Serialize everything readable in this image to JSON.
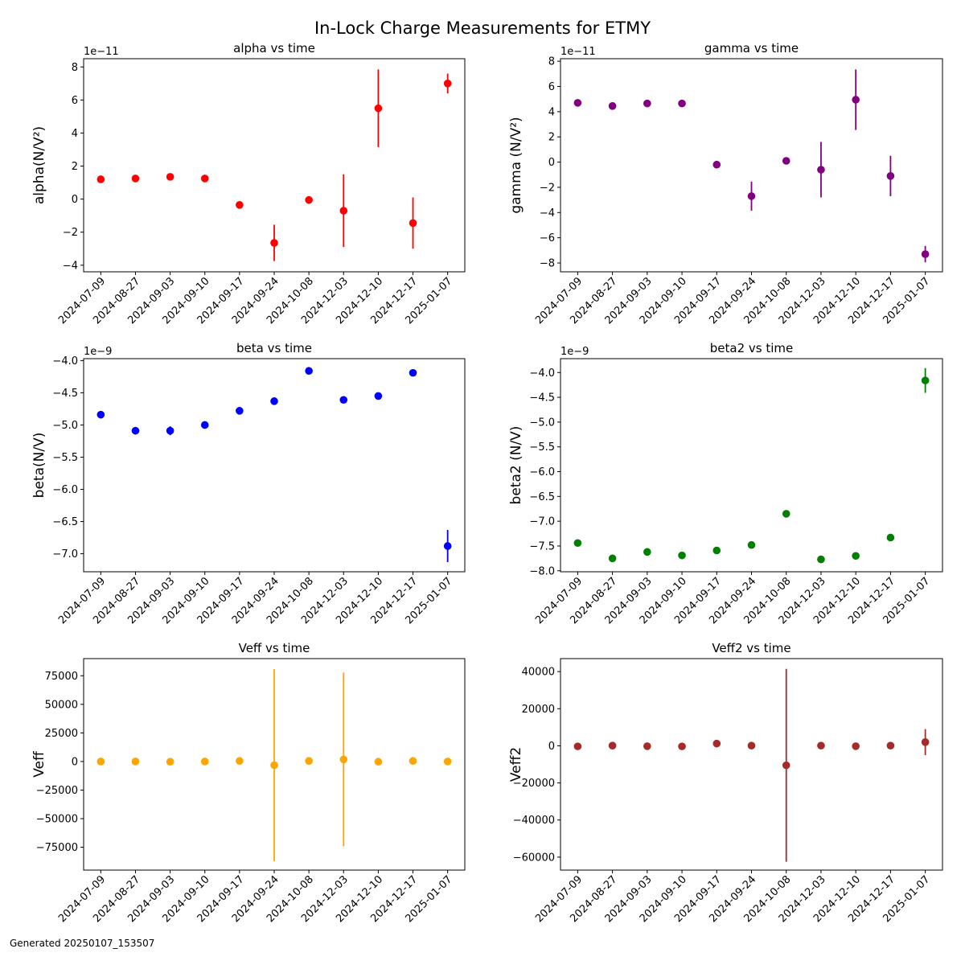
{
  "figure": {
    "title": "In-Lock Charge Measurements for ETMY",
    "footer": "Generated 20250107_153507"
  },
  "chart_data": [
    {
      "type": "scatter",
      "title": "alpha vs time",
      "ylabel": "alpha(N/V²)",
      "offset_label": "1e−11",
      "color": "#ff0000",
      "x": [
        "2024-07-09",
        "2024-08-27",
        "2024-09-03",
        "2024-09-10",
        "2024-09-17",
        "2024-09-24",
        "2024-10-08",
        "2024-12-03",
        "2024-12-10",
        "2024-12-17",
        "2025-01-07"
      ],
      "y": [
        1.2,
        1.25,
        1.35,
        1.25,
        -0.35,
        -2.65,
        -0.05,
        -0.7,
        5.5,
        -1.45,
        7.0
      ],
      "yerr": [
        0.1,
        0.1,
        0.15,
        0.1,
        0.2,
        1.1,
        0.1,
        2.2,
        2.35,
        1.55,
        0.6
      ],
      "ylim": [
        -4.4,
        8.5
      ],
      "yticks": [
        -4,
        -2,
        0,
        2,
        4,
        6,
        8
      ]
    },
    {
      "type": "scatter",
      "title": "gamma vs time",
      "ylabel": "gamma (N/V²)",
      "offset_label": "1e−11",
      "color": "#800080",
      "x": [
        "2024-07-09",
        "2024-08-27",
        "2024-09-03",
        "2024-09-10",
        "2024-09-17",
        "2024-09-24",
        "2024-10-08",
        "2024-12-03",
        "2024-12-10",
        "2024-12-17",
        "2025-01-07"
      ],
      "y": [
        4.7,
        4.45,
        4.65,
        4.65,
        -0.2,
        -2.7,
        0.1,
        -0.6,
        4.95,
        -1.1,
        -7.3
      ],
      "yerr": [
        0.1,
        0.1,
        0.1,
        0.1,
        0.15,
        1.15,
        0.1,
        2.2,
        2.4,
        1.6,
        0.65
      ],
      "ylim": [
        -8.7,
        8.2
      ],
      "yticks": [
        -8,
        -6,
        -4,
        -2,
        0,
        2,
        4,
        6,
        8
      ]
    },
    {
      "type": "scatter",
      "title": "beta vs time",
      "ylabel": "beta(N/V)",
      "offset_label": "1e−9",
      "color": "#0000ff",
      "x": [
        "2024-07-09",
        "2024-08-27",
        "2024-09-03",
        "2024-09-10",
        "2024-09-17",
        "2024-09-24",
        "2024-10-08",
        "2024-12-03",
        "2024-12-10",
        "2024-12-17",
        "2025-01-07"
      ],
      "y": [
        -4.84,
        -5.09,
        -5.09,
        -5.0,
        -4.78,
        -4.63,
        -4.16,
        -4.61,
        -4.55,
        -4.19,
        -6.88
      ],
      "yerr": [
        0.02,
        0.06,
        0.07,
        0.03,
        0.04,
        0.03,
        0.02,
        0.03,
        0.03,
        0.02,
        0.25
      ],
      "ylim": [
        -7.28,
        -3.97
      ],
      "yticks": [
        -7.0,
        -6.5,
        -6.0,
        -5.5,
        -5.0,
        -4.5,
        -4.0
      ]
    },
    {
      "type": "scatter",
      "title": "beta2 vs time",
      "ylabel": "beta2 (N/V)",
      "offset_label": "1e−9",
      "color": "#008000",
      "x": [
        "2024-07-09",
        "2024-08-27",
        "2024-09-03",
        "2024-09-10",
        "2024-09-17",
        "2024-09-24",
        "2024-10-08",
        "2024-12-03",
        "2024-12-10",
        "2024-12-17",
        "2025-01-07"
      ],
      "y": [
        -7.44,
        -7.75,
        -7.62,
        -7.69,
        -7.59,
        -7.48,
        -6.85,
        -7.77,
        -7.7,
        -7.33,
        -4.16
      ],
      "yerr": [
        0.03,
        0.03,
        0.05,
        0.03,
        0.03,
        0.03,
        0.03,
        0.03,
        0.03,
        0.03,
        0.25
      ],
      "ylim": [
        -8.02,
        -3.72
      ],
      "yticks": [
        -8.0,
        -7.5,
        -7.0,
        -6.5,
        -6.0,
        -5.5,
        -5.0,
        -4.5,
        -4.0
      ]
    },
    {
      "type": "scatter",
      "title": "Veff vs time",
      "ylabel": "Veff",
      "offset_label": "",
      "color": "#ffa500",
      "x": [
        "2024-07-09",
        "2024-08-27",
        "2024-09-03",
        "2024-09-10",
        "2024-09-17",
        "2024-09-24",
        "2024-10-08",
        "2024-12-03",
        "2024-12-10",
        "2024-12-17",
        "2025-01-07"
      ],
      "y": [
        0,
        0,
        -200,
        0,
        500,
        -3200,
        500,
        1800,
        -200,
        500,
        0
      ],
      "yerr": [
        200,
        200,
        200,
        200,
        300,
        84000,
        300,
        76000,
        200,
        300,
        200
      ],
      "ylim": [
        -95000,
        90000
      ],
      "yticks": [
        -75000,
        -50000,
        -25000,
        0,
        25000,
        50000,
        75000
      ]
    },
    {
      "type": "scatter",
      "title": "Veff2 vs time",
      "ylabel": "Veff2",
      "offset_label": "",
      "color": "#a52a2a",
      "x": [
        "2024-07-09",
        "2024-08-27",
        "2024-09-03",
        "2024-09-10",
        "2024-09-17",
        "2024-09-24",
        "2024-10-08",
        "2024-12-03",
        "2024-12-10",
        "2024-12-17",
        "2025-01-07"
      ],
      "y": [
        -300,
        100,
        -200,
        -300,
        1200,
        100,
        -10500,
        100,
        -200,
        100,
        2000
      ],
      "yerr": [
        100,
        100,
        100,
        100,
        200,
        100,
        52000,
        100,
        100,
        100,
        7000
      ],
      "ylim": [
        -67000,
        47000
      ],
      "yticks": [
        -60000,
        -40000,
        -20000,
        0,
        20000,
        40000
      ]
    }
  ]
}
